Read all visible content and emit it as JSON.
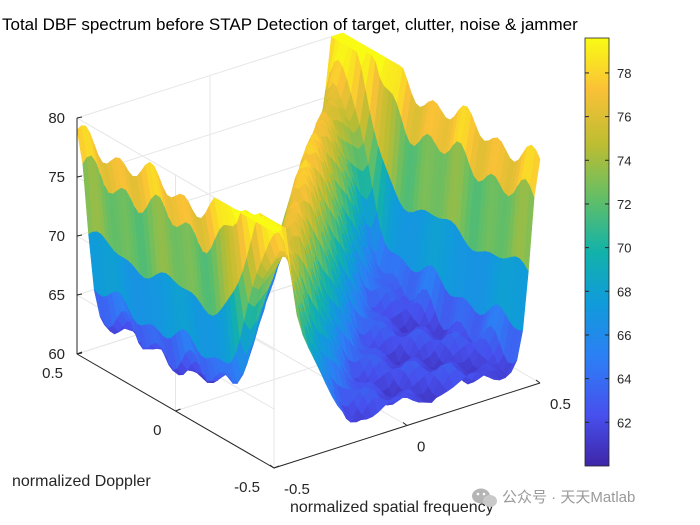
{
  "chart_data": {
    "type": "surface",
    "title": "Total DBF spectrum before STAP Detection of target, clutter, noise & jammer",
    "xlabel": "normalized spatial frequency",
    "ylabel": "normalized Doppler",
    "zlabel": "",
    "xlim": [
      -0.5,
      0.5
    ],
    "ylim": [
      -0.5,
      0.5
    ],
    "zlim": [
      60,
      80
    ],
    "x_ticks": [
      -0.5,
      0,
      0.5
    ],
    "x_tick_labels": [
      "-0.5",
      "0",
      "0.5"
    ],
    "y_ticks": [
      -0.5,
      0,
      0.5
    ],
    "y_tick_labels": [
      "-0.5",
      "0",
      "0.5"
    ],
    "z_ticks": [
      60,
      65,
      70,
      75,
      80
    ],
    "z_tick_labels": [
      "60",
      "65",
      "70",
      "75",
      "80"
    ],
    "colorbar": {
      "limits": [
        60,
        79.6
      ],
      "ticks": [
        62,
        64,
        66,
        68,
        70,
        72,
        74,
        76,
        78
      ],
      "tick_labels": [
        "62",
        "64",
        "66",
        "68",
        "70",
        "72",
        "74",
        "76",
        "78"
      ],
      "colormap": "parula"
    },
    "surface_features": {
      "floor_level_db": 62,
      "jammer_ridges": [
        {
          "spatial_frequency": -0.5,
          "peak_db": 78.5
        },
        {
          "spatial_frequency": 0.5,
          "peak_db": 78.5
        }
      ],
      "clutter_ridge": {
        "description": "diagonal ridge along spatial frequency = Doppler",
        "peak_db": 79.5
      },
      "target": {
        "spatial_frequency": -0.2,
        "doppler": 0.25,
        "peak_db": 70
      }
    }
  },
  "watermark": {
    "text": "公众号 · 天天Matlab"
  },
  "colors": {
    "axis_line": "#262626",
    "grid": "#e6e6e6",
    "background": "#ffffff"
  }
}
